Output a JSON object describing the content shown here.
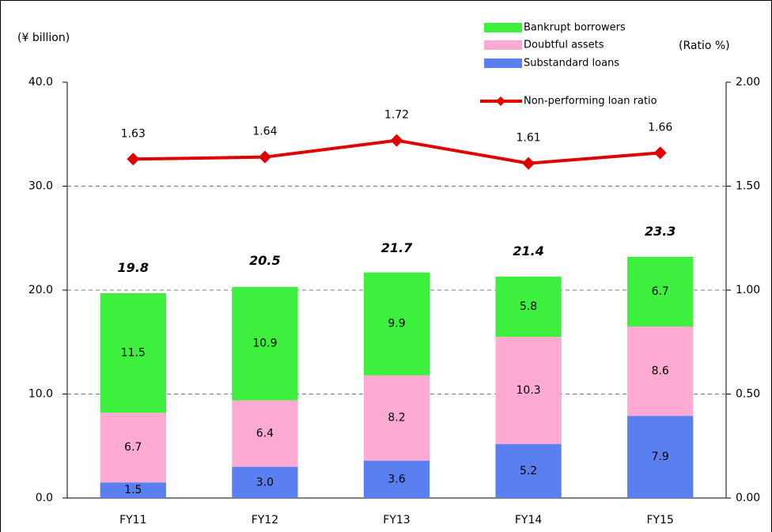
{
  "chart_data": {
    "type": "bar",
    "y_label": "(¥ billion)",
    "y2_label": "(Ratio %)",
    "categories": [
      "FY11",
      "FY12",
      "FY13",
      "FY14",
      "FY15"
    ],
    "series": [
      {
        "name": "Substandard loans",
        "color": "#5a7ff0",
        "values": [
          1.5,
          3.0,
          3.6,
          5.2,
          7.9
        ],
        "value_labels": [
          "1.5",
          "3.0",
          "3.6",
          "5.2",
          "7.9"
        ]
      },
      {
        "name": "Doubtful assets",
        "color": "#ffaad2",
        "values": [
          6.7,
          6.4,
          8.2,
          10.3,
          8.6
        ],
        "value_labels": [
          "6.7",
          "6.4",
          "8.2",
          "10.3",
          "8.6"
        ]
      },
      {
        "name": "Bankrupt borrowers",
        "color": "#3ef03e",
        "values": [
          11.5,
          10.9,
          9.9,
          5.8,
          6.7
        ],
        "value_labels": [
          "11.5",
          "10.9",
          "9.9",
          "5.8",
          "6.7"
        ]
      },
      {
        "name": "Non-performing loan ratio",
        "type": "line",
        "axis": "y2",
        "color": "#e00000",
        "values": [
          1.63,
          1.64,
          1.72,
          1.61,
          1.66
        ]
      }
    ],
    "totals": [
      19.8,
      20.5,
      21.7,
      21.4,
      23.3
    ],
    "ylim": [
      0,
      40
    ],
    "yticks": [
      {
        "value": 0,
        "label": "0.0"
      },
      {
        "value": 10,
        "label": "10.0"
      },
      {
        "value": 20,
        "label": "20.0"
      },
      {
        "value": 30,
        "label": "30.0"
      },
      {
        "value": 40,
        "label": "40.0"
      }
    ],
    "y2lim": [
      0,
      2
    ],
    "y2ticks": [
      {
        "value": 0,
        "label": "0.00"
      },
      {
        "value": 0.5,
        "label": "0.50"
      },
      {
        "value": 1,
        "label": "1.00"
      },
      {
        "value": 1.5,
        "label": "1.50"
      },
      {
        "value": 2,
        "label": "2.00"
      }
    ],
    "grid": true
  }
}
